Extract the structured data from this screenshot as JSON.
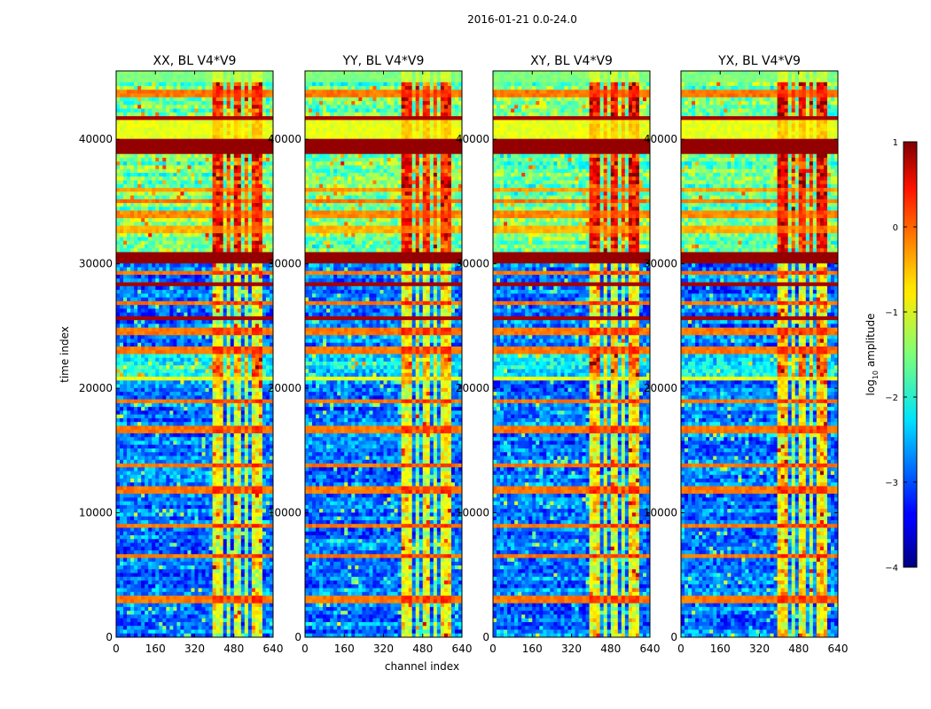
{
  "suptitle": "2016-01-21 0.0-24.0",
  "chart_data": {
    "type": "heatmap",
    "x_label": "channel index",
    "y_label": "time index",
    "x_range": [
      0,
      640
    ],
    "y_range": [
      0,
      45500
    ],
    "x_ticks": [
      0,
      160,
      320,
      480,
      640
    ],
    "y_ticks": [
      0,
      10000,
      20000,
      30000,
      40000
    ],
    "panels": [
      {
        "title": "XX, BL V4*V9"
      },
      {
        "title": "YY, BL V4*V9"
      },
      {
        "title": "XY, BL V4*V9"
      },
      {
        "title": "YX, BL V4*V9"
      }
    ],
    "colorbar": {
      "label": "log10 amplitude",
      "label_main": "log",
      "label_sub": "10",
      "label_rest": " amplitude",
      "range": [
        -4,
        1
      ],
      "ticks": [
        1,
        0,
        -1,
        -2,
        -3,
        -4
      ],
      "tick_labels": [
        "1",
        "0",
        "−1",
        "−2",
        "−3",
        "−4"
      ],
      "colormap": "jet"
    },
    "bands": [
      {
        "y0": 44500,
        "y1": 45500,
        "level": -1.5
      },
      {
        "y0": 43300,
        "y1": 43900,
        "level": -0.2
      },
      {
        "y0": 41500,
        "y1": 42000,
        "level": 0.8
      },
      {
        "y0": 40000,
        "y1": 41500,
        "level": -1.0
      },
      {
        "y0": 38800,
        "y1": 40000,
        "level": 0.9
      },
      {
        "y0": 35800,
        "y1": 36200,
        "level": -0.4
      },
      {
        "y0": 34800,
        "y1": 35200,
        "level": -0.2
      },
      {
        "y0": 33800,
        "y1": 34300,
        "level": -0.3
      },
      {
        "y0": 32600,
        "y1": 33000,
        "level": -0.5
      },
      {
        "y0": 30000,
        "y1": 31000,
        "level": 0.9
      },
      {
        "y0": 29200,
        "y1": 29500,
        "level": -0.2
      },
      {
        "y0": 28200,
        "y1": 28500,
        "level": 0.8
      },
      {
        "y0": 26800,
        "y1": 27100,
        "level": -0.2
      },
      {
        "y0": 25400,
        "y1": 25700,
        "level": 0.8
      },
      {
        "y0": 24200,
        "y1": 24800,
        "level": -0.2
      },
      {
        "y0": 22800,
        "y1": 23300,
        "level": -0.2
      },
      {
        "y0": 20600,
        "y1": 21000,
        "level": -1.0
      },
      {
        "y0": 18700,
        "y1": 19000,
        "level": -0.2
      },
      {
        "y0": 16500,
        "y1": 17000,
        "level": -0.2
      },
      {
        "y0": 13800,
        "y1": 14000,
        "level": -0.2
      },
      {
        "y0": 11600,
        "y1": 12000,
        "level": -0.2
      },
      {
        "y0": 8900,
        "y1": 9200,
        "level": -0.2
      },
      {
        "y0": 6400,
        "y1": 6700,
        "level": -0.2
      },
      {
        "y0": 2700,
        "y1": 3200,
        "level": -0.2
      }
    ],
    "column_groups": [
      {
        "x0": 400,
        "x1": 440,
        "boost": 1.3
      },
      {
        "x0": 450,
        "x1": 470,
        "boost": 1.0
      },
      {
        "x0": 480,
        "x1": 510,
        "boost": 1.2
      },
      {
        "x0": 520,
        "x1": 540,
        "boost": 1.0
      },
      {
        "x0": 550,
        "x1": 590,
        "boost": 1.3
      }
    ]
  }
}
